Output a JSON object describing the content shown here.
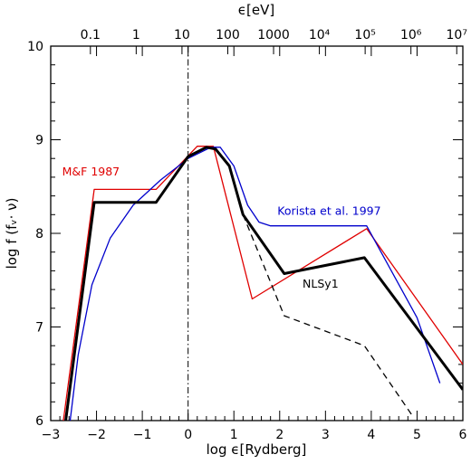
{
  "chart_data": {
    "type": "line",
    "xlabel": "log ϵ[Rydberg]",
    "ylabel": "log f (fᵥ· ν)",
    "top_axis_label": "ϵ[eV]",
    "xlim": [
      -3,
      6
    ],
    "ylim": [
      6,
      10
    ],
    "x_ticks": [
      "−3",
      "−2",
      "−1",
      "0",
      "1",
      "2",
      "3",
      "4",
      "5",
      "6"
    ],
    "y_ticks": [
      "6",
      "7",
      "8",
      "9",
      "10"
    ],
    "top_ticks": [
      {
        "label": "0.1",
        "ev": 0.1
      },
      {
        "label": "1",
        "ev": 1
      },
      {
        "label": "10",
        "ev": 10
      },
      {
        "label": "100",
        "ev": 100
      },
      {
        "label": "1000",
        "ev": 1000
      },
      {
        "label": "10⁴",
        "ev": 10000
      },
      {
        "label": "10⁵",
        "ev": 100000
      },
      {
        "label": "10⁶",
        "ev": 1000000
      },
      {
        "label": "10⁷",
        "ev": 10000000
      }
    ],
    "vline_x": 0,
    "series": [
      {
        "name": "M&F 1987",
        "color": "#e00000",
        "style": "solid",
        "points": [
          [
            -2.75,
            5.9
          ],
          [
            -2.05,
            8.47
          ],
          [
            -0.7,
            8.47
          ],
          [
            0.2,
            8.93
          ],
          [
            0.55,
            8.93
          ],
          [
            1.4,
            7.3
          ],
          [
            3.9,
            8.05
          ],
          [
            6.0,
            6.6
          ]
        ]
      },
      {
        "name": "Korista et al. 1997",
        "color": "#0000cc",
        "style": "solid",
        "points": [
          [
            -2.6,
            5.9
          ],
          [
            -2.4,
            6.7
          ],
          [
            -2.1,
            7.45
          ],
          [
            -1.7,
            7.95
          ],
          [
            -1.2,
            8.3
          ],
          [
            -0.6,
            8.57
          ],
          [
            0,
            8.8
          ],
          [
            0.5,
            8.92
          ],
          [
            0.7,
            8.92
          ],
          [
            1.0,
            8.72
          ],
          [
            1.3,
            8.3
          ],
          [
            1.55,
            8.12
          ],
          [
            1.8,
            8.08
          ],
          [
            3.9,
            8.08
          ],
          [
            5.0,
            7.1
          ],
          [
            5.5,
            6.4
          ]
        ]
      },
      {
        "name": "NLSy1",
        "color": "#000000",
        "style": "bold",
        "points": [
          [
            -2.7,
            5.9
          ],
          [
            -2.05,
            8.33
          ],
          [
            -0.7,
            8.33
          ],
          [
            0,
            8.82
          ],
          [
            0.4,
            8.92
          ],
          [
            0.6,
            8.9
          ],
          [
            0.9,
            8.72
          ],
          [
            1.2,
            8.2
          ],
          [
            2.1,
            7.57
          ],
          [
            3.85,
            7.74
          ],
          [
            6.0,
            6.33
          ]
        ]
      },
      {
        "name": "",
        "color": "#000000",
        "style": "dashed",
        "points": [
          [
            1.2,
            8.2
          ],
          [
            2.1,
            7.12
          ],
          [
            3.85,
            6.8
          ],
          [
            4.9,
            6.05
          ]
        ]
      }
    ],
    "annotations": [
      {
        "text": "M&F 1987",
        "x": -2.75,
        "y": 8.62,
        "color": "#e00000"
      },
      {
        "text": "Korista et al. 1997",
        "x": 1.95,
        "y": 8.2,
        "color": "#0000cc"
      },
      {
        "text": "NLSy1",
        "x": 2.5,
        "y": 7.42,
        "color": "#000000"
      }
    ]
  }
}
